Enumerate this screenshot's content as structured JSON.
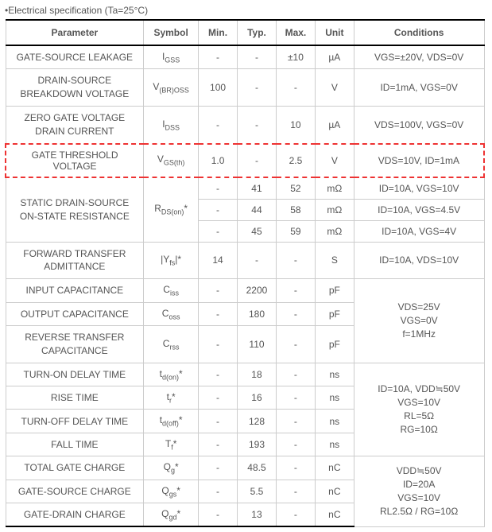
{
  "title": "•Electrical specification (Ta=25°C)",
  "headers": {
    "parameter": "Parameter",
    "symbol": "Symbol",
    "min": "Min.",
    "typ": "Typ.",
    "max": "Max.",
    "unit": "Unit",
    "conditions": "Conditions"
  },
  "rows": {
    "r1": {
      "param": "GATE-SOURCE LEAKAGE",
      "symbol_main": "I",
      "symbol_sub": "GSS",
      "min": "-",
      "typ": "-",
      "max": "±10",
      "unit": "µA",
      "cond": "VGS=±20V, VDS=0V"
    },
    "r2": {
      "param_l1": "DRAIN-SOURCE",
      "param_l2": "BREAKDOWN VOLTAGE",
      "symbol_raw": "V(BR)OSS",
      "min": "100",
      "typ": "-",
      "max": "-",
      "unit": "V",
      "cond": "ID=1mA, VGS=0V"
    },
    "r3": {
      "param_l1": "ZERO GATE VOLTAGE",
      "param_l2": "DRAIN CURRENT",
      "symbol_main": "I",
      "symbol_sub": "DSS",
      "min": "-",
      "typ": "-",
      "max": "10",
      "unit": "µA",
      "cond": "VDS=100V, VGS=0V"
    },
    "r4": {
      "param": "GATE THRESHOLD VOLTAGE",
      "symbol_raw": "VGS(th)",
      "min": "1.0",
      "typ": "-",
      "max": "2.5",
      "unit": "V",
      "cond": "VDS=10V, ID=1mA"
    },
    "r5": {
      "param_l1": "STATIC DRAIN-SOURCE",
      "param_l2": "ON-STATE RESISTANCE",
      "symbol_raw": "RDS(on)*",
      "a": {
        "min": "-",
        "typ": "41",
        "max": "52",
        "unit": "mΩ",
        "cond": "ID=10A, VGS=10V"
      },
      "b": {
        "min": "-",
        "typ": "44",
        "max": "58",
        "unit": "mΩ",
        "cond": "ID=10A, VGS=4.5V"
      },
      "c": {
        "min": "-",
        "typ": "45",
        "max": "59",
        "unit": "mΩ",
        "cond": "ID=10A, VGS=4V"
      }
    },
    "r6": {
      "param_l1": "FORWARD TRANSFER",
      "param_l2": "ADMITTANCE",
      "symbol_raw": "|Yfs|*",
      "min": "14",
      "typ": "-",
      "max": "-",
      "unit": "S",
      "cond": "ID=10A, VDS=10V"
    },
    "cap": {
      "r7": {
        "param": "INPUT CAPACITANCE",
        "symbol_main": "C",
        "symbol_sub": "iss",
        "min": "-",
        "typ": "2200",
        "max": "-",
        "unit": "pF"
      },
      "r8": {
        "param": "OUTPUT CAPACITANCE",
        "symbol_main": "C",
        "symbol_sub": "oss",
        "min": "-",
        "typ": "180",
        "max": "-",
        "unit": "pF"
      },
      "r9": {
        "param_l1": "REVERSE TRANSFER",
        "param_l2": "CAPACITANCE",
        "symbol_main": "C",
        "symbol_sub": "rss",
        "min": "-",
        "typ": "110",
        "max": "-",
        "unit": "pF"
      },
      "cond_l1": "VDS=25V",
      "cond_l2": "VGS=0V",
      "cond_l3": "f=1MHz"
    },
    "sw": {
      "r10": {
        "param": "TURN-ON DELAY TIME",
        "symbol_raw": "td(on)*",
        "min": "-",
        "typ": "18",
        "max": "-",
        "unit": "ns"
      },
      "r11": {
        "param": "RISE TIME",
        "symbol_raw": "tr*",
        "min": "-",
        "typ": "16",
        "max": "-",
        "unit": "ns"
      },
      "r12": {
        "param": "TURN-OFF DELAY TIME",
        "symbol_raw": "td(off)*",
        "min": "-",
        "typ": "128",
        "max": "-",
        "unit": "ns"
      },
      "r13": {
        "param": "FALL TIME",
        "symbol_raw": "Tf*",
        "min": "-",
        "typ": "193",
        "max": "-",
        "unit": "ns"
      },
      "cond_l1": "ID=10A, VDD≒50V",
      "cond_l2": "VGS=10V",
      "cond_l3": "RL=5Ω",
      "cond_l4": "RG=10Ω"
    },
    "chg": {
      "r14": {
        "param": "TOTAL GATE CHARGE",
        "symbol_raw": "Qg*",
        "min": "-",
        "typ": "48.5",
        "max": "-",
        "unit": "nC"
      },
      "r15": {
        "param": "GATE-SOURCE CHARGE",
        "symbol_raw": "Qgs*",
        "min": "-",
        "typ": "5.5",
        "max": "-",
        "unit": "nC"
      },
      "r16": {
        "param": "GATE-DRAIN CHARGE",
        "symbol_raw": "Qgd*",
        "min": "-",
        "typ": "13",
        "max": "-",
        "unit": "nC"
      },
      "cond_l1": "VDD≒50V",
      "cond_l2": "ID=20A",
      "cond_l3": "VGS=10V",
      "cond_l4": "RL2.5Ω / RG=10Ω"
    }
  },
  "colors": {
    "highlight_border": "#e33",
    "text": "#555555",
    "border": "#cccccc",
    "header_border": "#000000"
  }
}
